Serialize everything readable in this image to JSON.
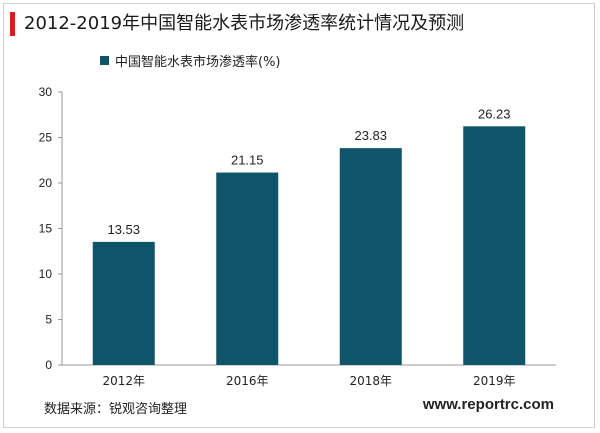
{
  "title": "2012-2019年中国智能水表市场渗透率统计情况及预测",
  "source": "数据来源：锐观咨询整理",
  "website": "www.reportrc.com",
  "colors": {
    "bar": "#0f5468",
    "accent": "#d81e1e",
    "axis": "#999999",
    "text": "#222222"
  },
  "chart_data": {
    "type": "bar",
    "title": "2012-2019年中国智能水表市场渗透率统计情况及预测",
    "categories": [
      "2012年",
      "2016年",
      "2018年",
      "2019年"
    ],
    "series": [
      {
        "name": "中国智能水表市场渗透率(%)",
        "values": [
          13.53,
          21.15,
          23.83,
          26.23
        ]
      }
    ],
    "data_labels": [
      "13.53",
      "21.15",
      "23.83",
      "26.23"
    ],
    "ylim": [
      0,
      30
    ],
    "yticks": [
      0,
      5,
      10,
      15,
      20,
      25,
      30
    ],
    "xlabel": "",
    "ylabel": "",
    "grid": false,
    "legend_position": "top-left"
  }
}
